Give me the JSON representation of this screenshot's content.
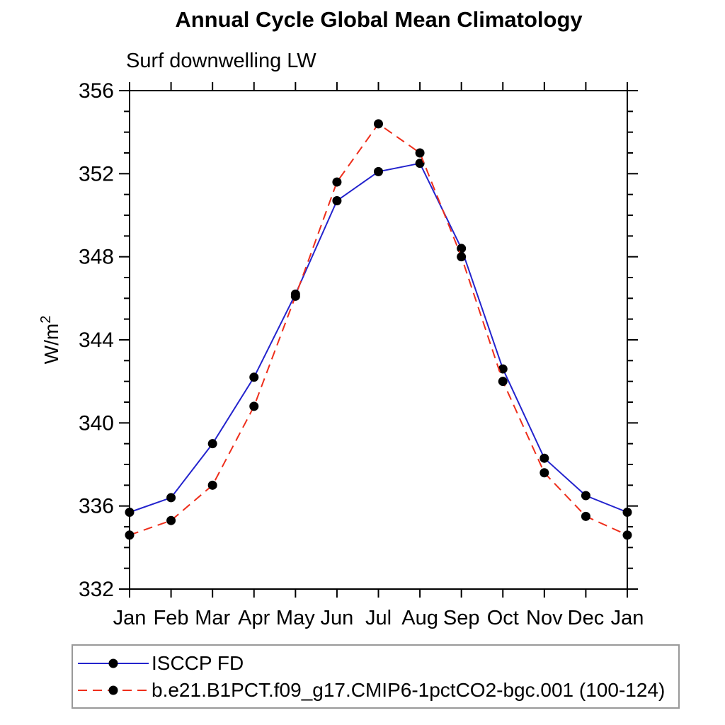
{
  "title": "Annual Cycle Global Mean Climatology",
  "subtitle": "Surf downwelling LW",
  "chart_data": {
    "type": "line",
    "title": "Annual Cycle Global Mean Climatology",
    "subtitle": "Surf downwelling LW",
    "ylabel_base": "W/m",
    "ylabel_exponent": "2",
    "x_categories": [
      "Jan",
      "Feb",
      "Mar",
      "Apr",
      "May",
      "Jun",
      "Jul",
      "Aug",
      "Sep",
      "Oct",
      "Nov",
      "Dec",
      "Jan"
    ],
    "ylim": [
      332,
      356
    ],
    "ytick_major_step": 4,
    "ytick_minor_step": 1,
    "ytick_labels": [
      "332",
      "336",
      "340",
      "344",
      "348",
      "352",
      "356"
    ],
    "grid": "off",
    "legend_position": "bottom",
    "axis_color": "#000000",
    "marker_color": "#000000",
    "series": [
      {
        "name": "ISCCP FD",
        "color": "#2323cd",
        "style": "solid",
        "marker": "circle",
        "values": [
          335.7,
          336.4,
          339.0,
          342.2,
          346.2,
          350.7,
          352.1,
          352.5,
          348.4,
          342.6,
          338.3,
          336.5,
          335.7
        ]
      },
      {
        "name": "b.e21.B1PCT.f09_g17.CMIP6-1pctCO2-bgc.001 (100-124)",
        "color": "#ee2e1b",
        "style": "dashed",
        "marker": "circle",
        "values": [
          334.6,
          335.3,
          337.0,
          340.8,
          346.1,
          351.6,
          354.4,
          353.0,
          348.0,
          342.0,
          337.6,
          335.5,
          334.6
        ]
      }
    ]
  }
}
